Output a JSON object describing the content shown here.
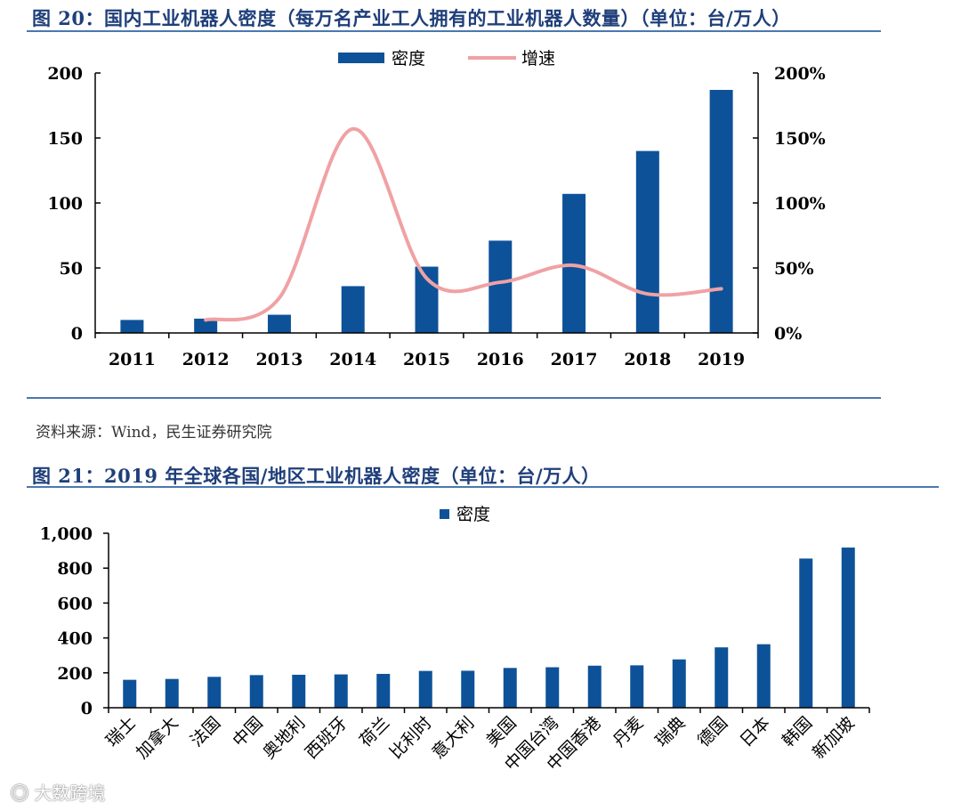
{
  "figure1": {
    "title": "图 20：国内工业机器人密度（每万名产业工人拥有的工业机器人数量）（单位：台/万人）",
    "source": "资料来源：Wind，民生证券研究院"
  },
  "figure2": {
    "title": "图 21：2019 年全球各国/地区工业机器人密度（单位：台/万人）"
  },
  "watermark": "大数跨境",
  "colors": {
    "bar": "#0d5299",
    "line": "#f0a1a4",
    "title": "#1f3f7a",
    "rule": "#4a78b0"
  },
  "chart_data": [
    {
      "type": "bar",
      "categories": [
        "2011",
        "2012",
        "2013",
        "2014",
        "2015",
        "2016",
        "2017",
        "2018",
        "2019"
      ],
      "series": [
        {
          "name": "密度",
          "type": "bar",
          "axis": "left",
          "values": [
            10,
            11,
            14,
            36,
            51,
            71,
            107,
            140,
            187
          ]
        },
        {
          "name": "增速",
          "type": "line",
          "axis": "right",
          "values": [
            null,
            10,
            27,
            157,
            42,
            39,
            52,
            30,
            34
          ]
        }
      ],
      "ylim_left": [
        0,
        200
      ],
      "yticks_left": [
        "0",
        "50",
        "100",
        "150",
        "200"
      ],
      "ylim_right": [
        0,
        200
      ],
      "yticks_right": [
        "0%",
        "50%",
        "100%",
        "150%",
        "200%"
      ],
      "legend": [
        "密度",
        "增速"
      ],
      "legend_position": "top-center"
    },
    {
      "type": "bar",
      "categories": [
        "瑞士",
        "加拿大",
        "法国",
        "中国",
        "奥地利",
        "西班牙",
        "荷兰",
        "比利时",
        "意大利",
        "美国",
        "中国台湾",
        "中国香港",
        "丹麦",
        "瑞典",
        "德国",
        "日本",
        "韩国",
        "新加坡"
      ],
      "series": [
        {
          "name": "密度",
          "values": [
            160,
            165,
            177,
            187,
            189,
            191,
            194,
            211,
            212,
            228,
            232,
            241,
            243,
            277,
            346,
            364,
            855,
            918
          ]
        }
      ],
      "ylim": [
        0,
        1000
      ],
      "yticks": [
        "0",
        "200",
        "400",
        "600",
        "800",
        "1,000"
      ],
      "legend": [
        "密度"
      ],
      "legend_position": "top-center"
    }
  ]
}
